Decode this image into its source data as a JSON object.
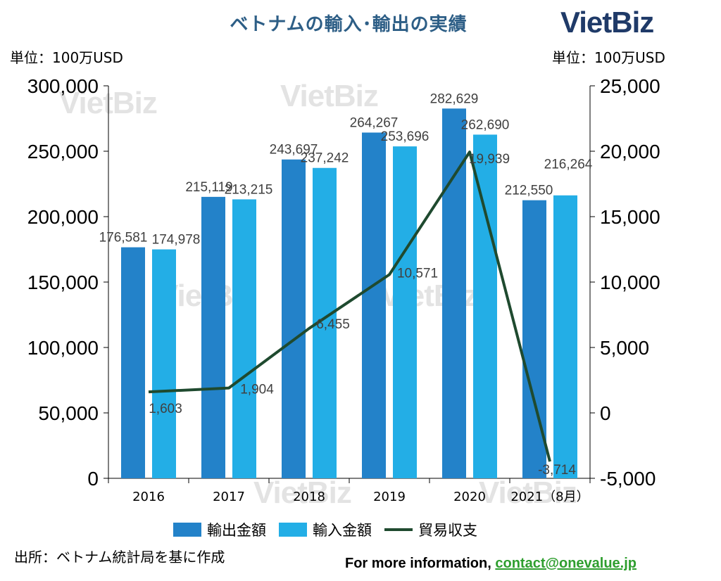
{
  "title": "ベトナムの輸入･輸出の実績",
  "logo": "VietBiz",
  "watermark": "VietBiz",
  "unit_left": "単位：100万USD",
  "unit_right": "単位：100万USD",
  "source": "出所：ベトナム統計局を基に作成",
  "more_info_label": "For more information,",
  "more_info_email": "contact@onevalue.jp",
  "colors": {
    "export": "#2382c9",
    "import": "#23aee6",
    "balance": "#1f4a2f",
    "title": "#2d5e86"
  },
  "chart_data": {
    "type": "bar",
    "categories": [
      "2016",
      "2017",
      "2018",
      "2019",
      "2020",
      "2021（8月）"
    ],
    "series": [
      {
        "name": "輸出金額",
        "type": "bar",
        "axis": "left",
        "values": [
          176581,
          215119,
          243697,
          264267,
          282629,
          212550
        ],
        "labels": [
          "176,581",
          "215,119",
          "243,697",
          "264,267",
          "282,629",
          "212,550"
        ]
      },
      {
        "name": "輸入金額",
        "type": "bar",
        "axis": "left",
        "values": [
          174978,
          213215,
          237242,
          253696,
          262690,
          216264
        ],
        "labels": [
          "174,978",
          "213,215",
          "237,242",
          "253,696",
          "262,690",
          "216,264"
        ]
      },
      {
        "name": "貿易収支",
        "type": "line",
        "axis": "right",
        "values": [
          1603,
          1904,
          6455,
          10571,
          19939,
          -3714
        ],
        "labels": [
          "1,603",
          "1,904",
          "6,455",
          "10,571",
          "19,939",
          "-3,714"
        ]
      }
    ],
    "y_left": {
      "min": 0,
      "max": 300000,
      "ticks": [
        "0",
        "50,000",
        "100,000",
        "150,000",
        "200,000",
        "250,000",
        "300,000"
      ]
    },
    "y_right": {
      "min": -5000,
      "max": 25000,
      "ticks": [
        "-5,000",
        "0",
        "5,000",
        "10,000",
        "15,000",
        "20,000",
        "25,000"
      ]
    },
    "legend": [
      "輸出金額",
      "輸入金額",
      "貿易収支"
    ],
    "legend_position": "bottom"
  }
}
